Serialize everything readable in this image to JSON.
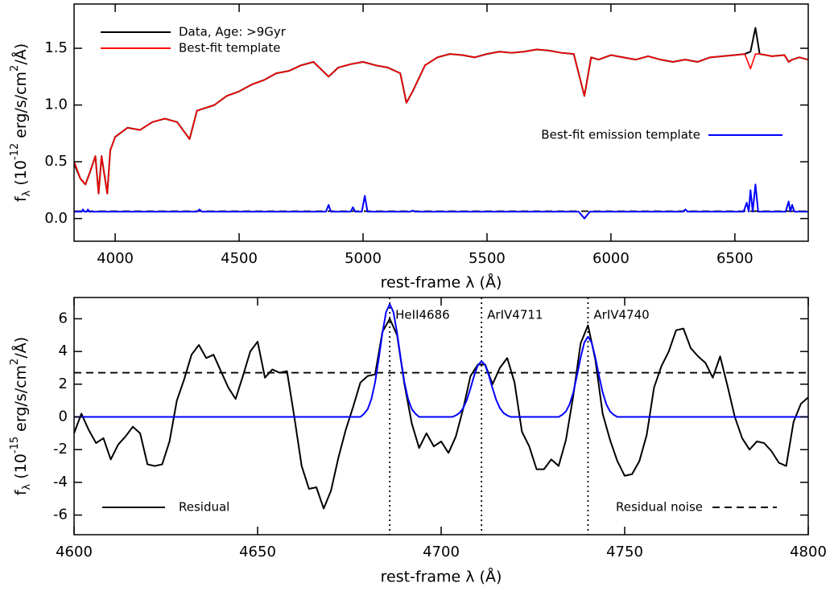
{
  "chart_data": [
    {
      "type": "line",
      "xlabel": "rest-frame λ (Å)",
      "ylabel": [
        "f",
        "λ",
        " (10",
        "-12",
        " erg/s/cm",
        "2",
        "/Å)"
      ],
      "xlim": [
        3834,
        6796
      ],
      "xticks": [
        4000,
        4500,
        5000,
        5500,
        6000,
        6500
      ],
      "ylim": [
        -0.2,
        1.89
      ],
      "yticks": [
        {
          "value": 0,
          "label": "0.0"
        },
        {
          "value": 0.5,
          "label": "0.5"
        },
        {
          "value": 1,
          "label": "1.0"
        },
        {
          "value": 1.5,
          "label": "1.5"
        }
      ],
      "series": [
        {
          "name": "Data, Age: >9Gyr",
          "color": "#000000",
          "legend": "upper left",
          "x": [
            3835,
            3860,
            3880,
            3900,
            3920,
            3933,
            3945,
            3968,
            3980,
            4000,
            4050,
            4100,
            4150,
            4200,
            4250,
            4300,
            4330,
            4400,
            4450,
            4500,
            4550,
            4600,
            4650,
            4700,
            4750,
            4800,
            4861,
            4900,
            4950,
            5000,
            5050,
            5100,
            5150,
            5175,
            5200,
            5250,
            5300,
            5350,
            5400,
            5450,
            5500,
            5550,
            5600,
            5650,
            5700,
            5750,
            5800,
            5850,
            5893,
            5920,
            5950,
            6000,
            6050,
            6100,
            6150,
            6200,
            6250,
            6300,
            6350,
            6400,
            6450,
            6500,
            6540,
            6563,
            6583,
            6600,
            6650,
            6700,
            6717,
            6731,
            6760,
            6795
          ],
          "values": [
            0.48,
            0.35,
            0.3,
            0.42,
            0.55,
            0.22,
            0.55,
            0.22,
            0.6,
            0.72,
            0.8,
            0.78,
            0.85,
            0.88,
            0.85,
            0.7,
            0.95,
            1.0,
            1.08,
            1.12,
            1.18,
            1.22,
            1.28,
            1.3,
            1.35,
            1.38,
            1.25,
            1.33,
            1.36,
            1.38,
            1.35,
            1.33,
            1.28,
            1.02,
            1.12,
            1.35,
            1.42,
            1.45,
            1.44,
            1.42,
            1.45,
            1.47,
            1.46,
            1.47,
            1.49,
            1.48,
            1.46,
            1.45,
            1.08,
            1.42,
            1.4,
            1.44,
            1.42,
            1.4,
            1.43,
            1.4,
            1.38,
            1.4,
            1.38,
            1.42,
            1.43,
            1.44,
            1.45,
            1.47,
            1.68,
            1.45,
            1.43,
            1.44,
            1.38,
            1.4,
            1.42,
            1.4
          ]
        },
        {
          "name": "Best-fit template",
          "color": "#ff0000",
          "legend": "upper left",
          "x": [
            3835,
            3860,
            3880,
            3900,
            3920,
            3933,
            3945,
            3968,
            3980,
            4000,
            4050,
            4100,
            4150,
            4200,
            4250,
            4300,
            4330,
            4400,
            4450,
            4500,
            4550,
            4600,
            4650,
            4700,
            4750,
            4800,
            4861,
            4900,
            4950,
            5000,
            5050,
            5100,
            5150,
            5175,
            5200,
            5250,
            5300,
            5350,
            5400,
            5450,
            5500,
            5550,
            5600,
            5650,
            5700,
            5750,
            5800,
            5850,
            5893,
            5920,
            5950,
            6000,
            6050,
            6100,
            6150,
            6200,
            6250,
            6300,
            6350,
            6400,
            6450,
            6500,
            6540,
            6563,
            6583,
            6600,
            6650,
            6700,
            6717,
            6731,
            6760,
            6795
          ],
          "values": [
            0.5,
            0.35,
            0.3,
            0.42,
            0.55,
            0.22,
            0.55,
            0.22,
            0.6,
            0.72,
            0.8,
            0.78,
            0.85,
            0.88,
            0.85,
            0.7,
            0.95,
            1.0,
            1.08,
            1.12,
            1.18,
            1.22,
            1.28,
            1.3,
            1.35,
            1.38,
            1.25,
            1.33,
            1.36,
            1.38,
            1.35,
            1.33,
            1.28,
            1.02,
            1.12,
            1.35,
            1.42,
            1.45,
            1.44,
            1.42,
            1.45,
            1.47,
            1.46,
            1.47,
            1.49,
            1.48,
            1.46,
            1.45,
            1.08,
            1.42,
            1.4,
            1.44,
            1.42,
            1.4,
            1.43,
            1.4,
            1.38,
            1.4,
            1.38,
            1.42,
            1.43,
            1.44,
            1.45,
            1.32,
            1.45,
            1.45,
            1.43,
            1.44,
            1.38,
            1.4,
            1.42,
            1.4
          ]
        },
        {
          "name": "Best-fit emission template",
          "color": "#0000ff",
          "legend": "center right",
          "x": [
            3835,
            3865,
            3870,
            3875,
            3885,
            3890,
            3895,
            4330,
            4340,
            4350,
            4850,
            4861,
            4870,
            4950,
            4959,
            4968,
            4995,
            5007,
            5018,
            5190,
            5200,
            5210,
            5870,
            5893,
            5915,
            6290,
            6300,
            6310,
            6535,
            6548,
            6556,
            6563,
            6572,
            6583,
            6594,
            6705,
            6717,
            6724,
            6731,
            6740,
            6795
          ],
          "values": [
            0.06,
            0.06,
            0.08,
            0.06,
            0.06,
            0.08,
            0.06,
            0.06,
            0.08,
            0.06,
            0.06,
            0.12,
            0.06,
            0.06,
            0.1,
            0.06,
            0.06,
            0.2,
            0.06,
            0.06,
            0.07,
            0.06,
            0.06,
            0.0,
            0.06,
            0.06,
            0.08,
            0.06,
            0.06,
            0.14,
            0.06,
            0.25,
            0.06,
            0.3,
            0.06,
            0.06,
            0.15,
            0.06,
            0.12,
            0.06,
            0.06
          ]
        }
      ],
      "reference_lines": [
        {
          "value": 0.065,
          "style": "dashed",
          "color": "#000000"
        }
      ]
    },
    {
      "type": "line",
      "xlabel": "rest-frame λ (Å)",
      "ylabel": [
        "f",
        "λ",
        " (10",
        "-15",
        " erg/s/cm",
        "2",
        "/Å)"
      ],
      "xlim": [
        4600,
        4800
      ],
      "xticks": [
        4600,
        4650,
        4700,
        4750,
        4800
      ],
      "ylim": [
        -7.2,
        7.3
      ],
      "yticks": [
        -6,
        -4,
        -2,
        0,
        2,
        4,
        6
      ],
      "series": [
        {
          "name": "Residual",
          "color": "#000000",
          "legend": "lower left",
          "x": [
            4600,
            4602,
            4604,
            4606,
            4608,
            4610,
            4612,
            4614,
            4616,
            4618,
            4620,
            4622,
            4624,
            4626,
            4628,
            4630,
            4632,
            4634,
            4636,
            4638,
            4640,
            4642,
            4644,
            4646,
            4648,
            4650,
            4652,
            4654,
            4656,
            4658,
            4660,
            4662,
            4664,
            4666,
            4668,
            4670,
            4672,
            4674,
            4676,
            4678,
            4680,
            4682,
            4684,
            4686,
            4688,
            4690,
            4692,
            4694,
            4696,
            4698,
            4700,
            4702,
            4704,
            4706,
            4708,
            4710,
            4712,
            4714,
            4716,
            4718,
            4720,
            4722,
            4724,
            4726,
            4728,
            4730,
            4732,
            4734,
            4736,
            4738,
            4740,
            4742,
            4744,
            4746,
            4748,
            4750,
            4752,
            4754,
            4756,
            4758,
            4760,
            4762,
            4764,
            4766,
            4768,
            4770,
            4772,
            4774,
            4776,
            4778,
            4780,
            4782,
            4784,
            4786,
            4788,
            4790,
            4792,
            4794,
            4796,
            4798,
            4800
          ],
          "values": [
            -1.0,
            0.2,
            -0.8,
            -1.6,
            -1.3,
            -2.6,
            -1.7,
            -1.2,
            -0.6,
            -1.0,
            -2.9,
            -3.0,
            -2.9,
            -1.5,
            1.0,
            2.3,
            3.8,
            4.4,
            3.6,
            3.8,
            2.8,
            1.8,
            1.1,
            2.5,
            4.0,
            4.6,
            2.4,
            2.9,
            2.7,
            2.8,
            0.0,
            -3.0,
            -4.4,
            -4.3,
            -5.6,
            -4.5,
            -2.5,
            -0.8,
            0.6,
            2.1,
            2.5,
            2.6,
            5.2,
            6.0,
            5.0,
            2.0,
            -0.4,
            -1.9,
            -1.0,
            -1.8,
            -1.5,
            -2.2,
            -1.2,
            0.5,
            2.5,
            3.2,
            3.2,
            2.0,
            3.0,
            3.6,
            2.1,
            -0.9,
            -1.8,
            -3.2,
            -3.2,
            -2.6,
            -3.0,
            -1.4,
            1.3,
            4.5,
            5.6,
            3.5,
            0.2,
            -1.4,
            -2.7,
            -3.6,
            -3.5,
            -2.7,
            -1.1,
            1.8,
            3.1,
            4.0,
            5.3,
            5.4,
            4.2,
            3.7,
            3.3,
            2.4,
            3.7,
            1.9,
            0.0,
            -1.3,
            -2.0,
            -1.5,
            -1.6,
            -2.1,
            -2.8,
            -3.0,
            -0.3,
            0.8,
            1.2
          ]
        },
        {
          "color": "#0000ff",
          "x": [
            4600,
            4678,
            4679,
            4680,
            4681,
            4682,
            4683,
            4684,
            4685,
            4686,
            4687,
            4688,
            4689,
            4690,
            4691,
            4692,
            4693,
            4694,
            4703,
            4704,
            4705,
            4706,
            4707,
            4708,
            4709,
            4710,
            4711,
            4712,
            4713,
            4714,
            4715,
            4716,
            4717,
            4718,
            4719,
            4732,
            4733,
            4734,
            4735,
            4736,
            4737,
            4738,
            4739,
            4740,
            4741,
            4742,
            4743,
            4744,
            4745,
            4746,
            4747,
            4748,
            4800
          ],
          "values": [
            0,
            0,
            0.19,
            0.48,
            1.09,
            2.11,
            3.55,
            5.13,
            6.41,
            6.9,
            6.41,
            5.13,
            3.55,
            2.11,
            1.09,
            0.48,
            0.19,
            0,
            0,
            0.09,
            0.24,
            0.54,
            1.04,
            1.75,
            2.53,
            3.16,
            3.4,
            3.16,
            2.53,
            1.75,
            1.04,
            0.54,
            0.24,
            0.09,
            0,
            0,
            0.13,
            0.34,
            0.77,
            1.5,
            2.52,
            3.64,
            4.55,
            4.9,
            4.55,
            3.64,
            2.52,
            1.5,
            0.77,
            0.34,
            0.13,
            0,
            0
          ]
        }
      ],
      "reference_lines": [
        {
          "value": 2.7,
          "style": "dashed",
          "color": "#000000",
          "name": "Residual noise",
          "legend": "lower right"
        }
      ],
      "markers": [
        {
          "value": 4686,
          "label": "HeII4686"
        },
        {
          "value": 4711,
          "label": "ArIV4711"
        },
        {
          "value": 4740,
          "label": "ArIV4740"
        }
      ]
    }
  ]
}
